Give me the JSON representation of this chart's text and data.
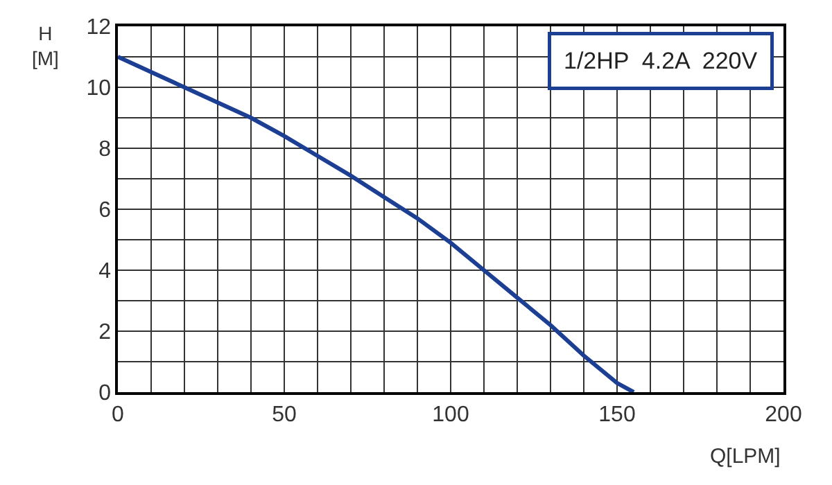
{
  "chart_data": {
    "type": "line",
    "xlabel": "Q[LPM]",
    "ylabel": "H\n[M]",
    "annotations": [
      "1/2HP  4.2A  220V"
    ],
    "x": [
      0,
      10,
      20,
      30,
      40,
      50,
      60,
      70,
      80,
      90,
      100,
      110,
      120,
      130,
      140,
      150,
      155
    ],
    "series": [
      {
        "color": "#1c3f94",
        "values": [
          11,
          10.5,
          10,
          9.5,
          9,
          8.4,
          7.75,
          7.1,
          6.4,
          5.7,
          4.9,
          4,
          3.1,
          2.2,
          1.2,
          0.3,
          0
        ]
      }
    ],
    "xlim": [
      0,
      200
    ],
    "xticks": [
      0,
      {
        "value": 10,
        "label": null
      },
      {
        "value": 20,
        "label": null
      },
      {
        "value": 30,
        "label": null
      },
      {
        "value": 40,
        "label": null
      },
      50,
      {
        "value": 60,
        "label": null
      },
      {
        "value": 70,
        "label": null
      },
      {
        "value": 80,
        "label": null
      },
      {
        "value": 90,
        "label": null
      },
      100,
      {
        "value": 110,
        "label": null
      },
      {
        "value": 120,
        "label": null
      },
      {
        "value": 130,
        "label": null
      },
      {
        "value": 140,
        "label": null
      },
      150,
      {
        "value": 160,
        "label": null
      },
      {
        "value": 170,
        "label": null
      },
      {
        "value": 180,
        "label": null
      },
      {
        "value": 190,
        "label": null
      },
      200
    ],
    "ylim": [
      0,
      12
    ],
    "yticks": [
      0,
      {
        "value": 1,
        "label": null
      },
      2,
      {
        "value": 3,
        "label": null
      },
      4,
      {
        "value": 5,
        "label": null
      },
      6,
      {
        "value": 7,
        "label": null
      },
      8,
      {
        "value": 9,
        "label": null
      },
      10,
      {
        "value": 11,
        "label": null
      },
      12
    ],
    "grid": true,
    "marker": "none",
    "line_style": "solid"
  }
}
